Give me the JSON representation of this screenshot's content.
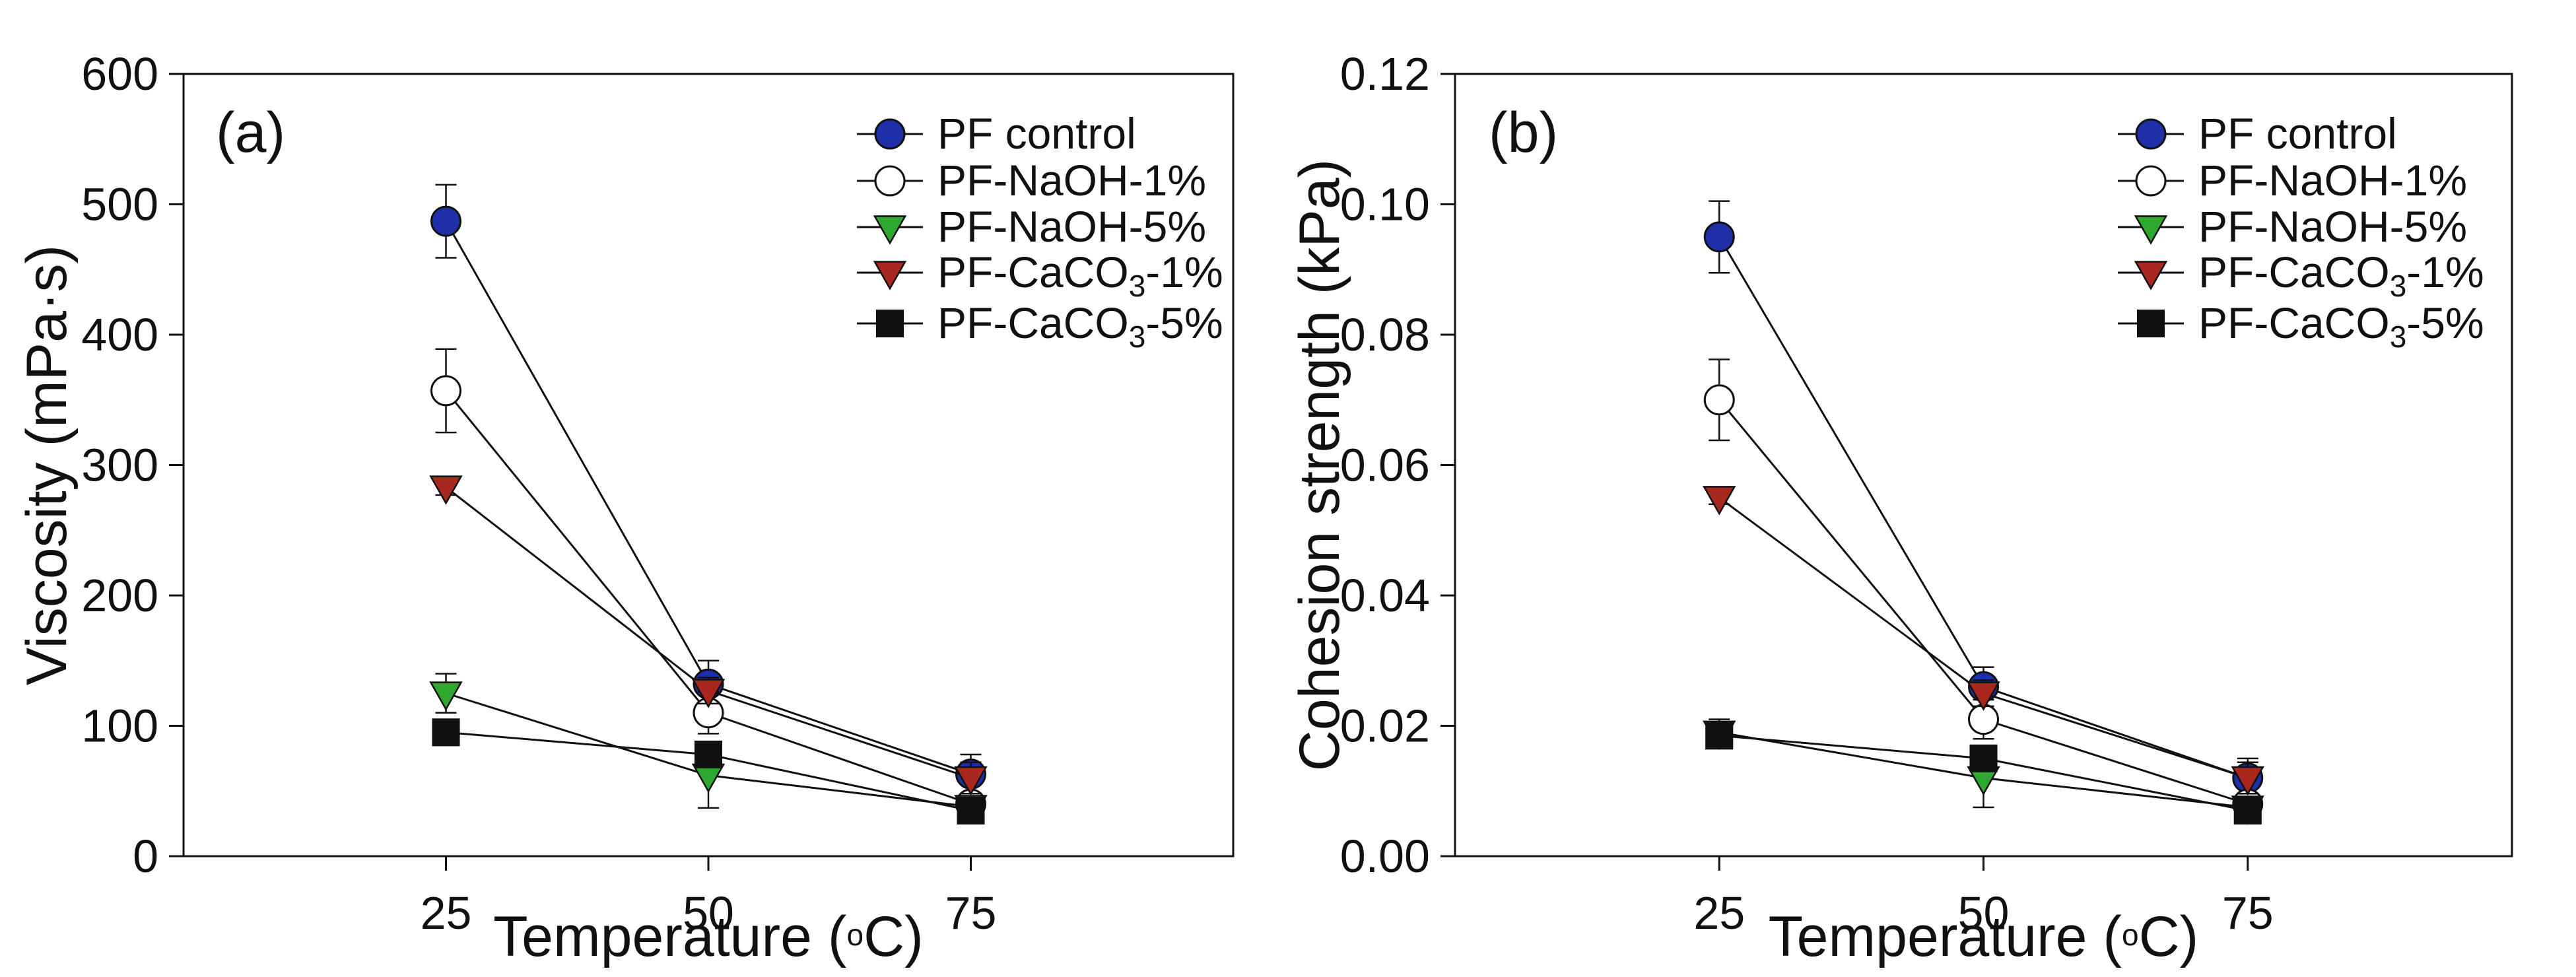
{
  "colors": {
    "PF control": "#1f2fa8",
    "PF-NaOH-1%": "#ffffff",
    "PF-NaOH-5%": "#2ea82e",
    "PF-CaCO3-1%": "#a8281f",
    "PF-CaCO3-5%": "#111111"
  },
  "chart_data": [
    {
      "type": "line",
      "panel_label": "(a)",
      "xlabel": "Temperature (°C)",
      "xlabel_prefix": "Temperature (",
      "xlabel_deg": "o",
      "xlabel_suffix": "C)",
      "ylabel": "Viscosity (mPa·s)",
      "x": [
        25,
        50,
        75
      ],
      "xlim": [
        0,
        100
      ],
      "ylim": [
        0,
        600
      ],
      "xticks": [
        "25",
        "50",
        "75"
      ],
      "yticks": [
        "0",
        "100",
        "200",
        "300",
        "400",
        "500",
        "600"
      ],
      "legend_position": "top-right",
      "series": [
        {
          "name": "PF control",
          "label": "PF control",
          "marker": "circle",
          "values": [
            487,
            132,
            63
          ],
          "errors": [
            28,
            18,
            15
          ]
        },
        {
          "name": "PF-NaOH-1%",
          "label": "PF-NaOH-1%",
          "marker": "circle-open",
          "values": [
            357,
            110,
            40
          ],
          "errors": [
            32,
            16,
            8
          ]
        },
        {
          "name": "PF-NaOH-5%",
          "label": "PF-NaOH-5%",
          "marker": "triangle-down",
          "values": [
            125,
            62,
            38
          ],
          "errors": [
            15,
            25,
            5
          ]
        },
        {
          "name": "PF-CaCO3-1%",
          "label": "PF-CaCO3-1%",
          "label_main": "PF-CaCO",
          "label_sub": "3",
          "label_tail": "-1%",
          "marker": "triangle-down",
          "values": [
            283,
            127,
            60
          ],
          "errors": [
            6,
            10,
            12
          ]
        },
        {
          "name": "PF-CaCO3-5%",
          "label": "PF-CaCO3-5%",
          "label_main": "PF-CaCO",
          "label_sub": "3",
          "label_tail": "-5%",
          "marker": "square",
          "values": [
            95,
            78,
            35
          ],
          "errors": [
            6,
            8,
            4
          ]
        }
      ]
    },
    {
      "type": "line",
      "panel_label": "(b)",
      "xlabel": "Temperature (°C)",
      "xlabel_prefix": "Temperature (",
      "xlabel_deg": "o",
      "xlabel_suffix": "C)",
      "ylabel": "Cohesion strength (kPa)",
      "x": [
        25,
        50,
        75
      ],
      "xlim": [
        0,
        100
      ],
      "ylim": [
        0,
        0.12
      ],
      "xticks": [
        "25",
        "50",
        "75"
      ],
      "yticks": [
        "0.00",
        "0.02",
        "0.04",
        "0.06",
        "0.08",
        "0.10",
        "0.12"
      ],
      "legend_position": "top-right",
      "series": [
        {
          "name": "PF control",
          "label": "PF control",
          "marker": "circle",
          "values": [
            0.095,
            0.026,
            0.012
          ],
          "errors": [
            0.0055,
            0.003,
            0.003
          ]
        },
        {
          "name": "PF-NaOH-1%",
          "label": "PF-NaOH-1%",
          "marker": "circle-open",
          "values": [
            0.07,
            0.021,
            0.008
          ],
          "errors": [
            0.0062,
            0.003,
            0.0016
          ]
        },
        {
          "name": "PF-NaOH-5%",
          "label": "PF-NaOH-5%",
          "marker": "triangle-down",
          "values": [
            0.019,
            0.012,
            0.0075
          ],
          "errors": [
            0.002,
            0.0045,
            0.001
          ]
        },
        {
          "name": "PF-CaCO3-1%",
          "label": "PF-CaCO3-1%",
          "label_main": "PF-CaCO",
          "label_sub": "3",
          "label_tail": "-1%",
          "marker": "triangle-down",
          "values": [
            0.055,
            0.025,
            0.012
          ],
          "errors": [
            0.001,
            0.002,
            0.0024
          ]
        },
        {
          "name": "PF-CaCO3-5%",
          "label": "PF-CaCO3-5%",
          "label_main": "PF-CaCO",
          "label_sub": "3",
          "label_tail": "-5%",
          "marker": "square",
          "values": [
            0.0185,
            0.015,
            0.007
          ],
          "errors": [
            0.0012,
            0.0015,
            0.0008
          ]
        }
      ]
    }
  ]
}
